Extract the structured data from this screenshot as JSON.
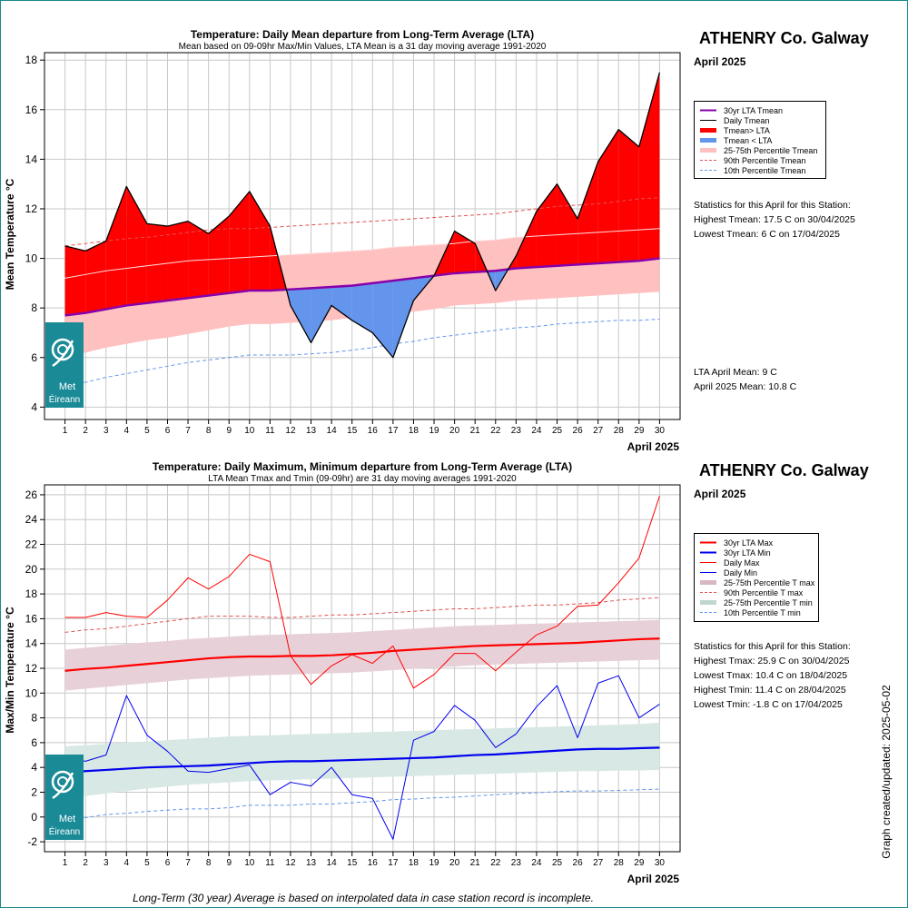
{
  "station_title": "ATHENRY Co. Galway",
  "month_label": "April 2025",
  "logo_text": [
    "Met",
    "Éireann"
  ],
  "footer_note": "Long-Term (30 year) Average is based on interpolated data in case station record is incomplete.",
  "created_label": "Graph created/updated:  2025-05-02",
  "colors": {
    "red": "#ff0000",
    "blue": "#0000ee",
    "purple": "#8800aa",
    "mean_blue": "#6495ed",
    "pink": "#ffc0c0",
    "mauve": "#e8d0d8",
    "sage": "#d8e8e4",
    "teal": "#1a8a96"
  },
  "chart_data": [
    {
      "type": "area",
      "title": "Temperature: Daily Mean departure from Long-Term Average (LTA)",
      "subtitle": "Mean based on 09-09hr Max/Min Values, LTA Mean is a 31 day moving average 1991-2020",
      "ylabel": "Mean Temperature °C",
      "xlabel": "April 2025",
      "ylim": [
        3.5,
        18.3
      ],
      "y_ticks": [
        4,
        6,
        8,
        10,
        12,
        14,
        16,
        18
      ],
      "x": [
        1,
        2,
        3,
        4,
        5,
        6,
        7,
        8,
        9,
        10,
        11,
        12,
        13,
        14,
        15,
        16,
        17,
        18,
        19,
        20,
        21,
        22,
        23,
        24,
        25,
        26,
        27,
        28,
        29,
        30
      ],
      "grid": true,
      "legend": {
        "position": "right",
        "entries": [
          "30yr LTA Tmean",
          "Daily Tmean",
          "Tmean> LTA",
          "Tmean < LTA",
          "25-75th Percentile Tmean",
          "90th Percentile Tmean",
          "10th Percentile Tmean"
        ]
      },
      "series": {
        "daily_tmean": [
          10.5,
          10.3,
          10.7,
          12.9,
          11.4,
          11.3,
          11.5,
          11.0,
          11.7,
          12.7,
          11.3,
          8.1,
          6.6,
          8.1,
          7.5,
          7.0,
          6.0,
          8.3,
          9.3,
          11.1,
          10.6,
          8.7,
          10.1,
          11.9,
          13.0,
          11.6,
          13.9,
          15.2,
          14.5,
          17.5
        ],
        "lta_tmean": [
          7.7,
          7.8,
          7.95,
          8.1,
          8.2,
          8.3,
          8.4,
          8.5,
          8.6,
          8.7,
          8.7,
          8.75,
          8.8,
          8.85,
          8.9,
          9.0,
          9.1,
          9.2,
          9.3,
          9.4,
          9.45,
          9.5,
          9.6,
          9.65,
          9.7,
          9.75,
          9.8,
          9.85,
          9.9,
          10.0
        ],
        "p25_tmean": [
          6.1,
          6.2,
          6.4,
          6.55,
          6.7,
          6.8,
          6.95,
          7.1,
          7.25,
          7.35,
          7.35,
          7.4,
          7.45,
          7.5,
          7.6,
          7.7,
          7.8,
          7.85,
          7.95,
          8.1,
          8.15,
          8.2,
          8.3,
          8.35,
          8.4,
          8.45,
          8.5,
          8.55,
          8.6,
          8.65
        ],
        "p75_tmean": [
          9.2,
          9.35,
          9.5,
          9.6,
          9.7,
          9.8,
          9.9,
          9.95,
          10.0,
          10.05,
          10.1,
          10.15,
          10.2,
          10.25,
          10.3,
          10.35,
          10.45,
          10.5,
          10.55,
          10.6,
          10.7,
          10.75,
          10.85,
          10.9,
          10.95,
          11.0,
          11.05,
          11.1,
          11.15,
          11.2
        ],
        "p90_tmean": [
          10.5,
          10.6,
          10.7,
          10.8,
          10.85,
          10.95,
          11.05,
          11.15,
          11.2,
          11.2,
          11.25,
          11.3,
          11.35,
          11.4,
          11.45,
          11.5,
          11.55,
          11.6,
          11.65,
          11.7,
          11.75,
          11.8,
          11.9,
          12.0,
          12.1,
          12.15,
          12.2,
          12.3,
          12.4,
          12.45
        ],
        "p10_tmean": [
          4.9,
          5.0,
          5.2,
          5.35,
          5.5,
          5.65,
          5.8,
          5.9,
          6.0,
          6.1,
          6.1,
          6.1,
          6.15,
          6.2,
          6.3,
          6.4,
          6.55,
          6.65,
          6.8,
          6.9,
          7.0,
          7.1,
          7.2,
          7.25,
          7.35,
          7.4,
          7.45,
          7.5,
          7.5,
          7.55
        ]
      },
      "statistics": {
        "heading": "Statistics for this April for this Station:",
        "lines": [
          "Highest Tmean: 17.5 C on 30/04/2025",
          "Lowest Tmean: 6 C on 17/04/2025"
        ],
        "means": [
          "LTA April Mean: 9 C",
          "April 2025 Mean: 10.8 C"
        ]
      }
    },
    {
      "type": "line",
      "title": "Temperature: Daily Maximum, Minimum departure from Long-Term Average (LTA)",
      "subtitle": "LTA Mean Tmax and Tmin (09-09hr) are 31 day moving averages 1991-2020",
      "ylabel": "Max/Min Temperature °C",
      "xlabel": "April 2025",
      "ylim": [
        -2.8,
        26.8
      ],
      "y_ticks": [
        -2,
        0,
        2,
        4,
        6,
        8,
        10,
        12,
        14,
        16,
        18,
        20,
        22,
        24,
        26
      ],
      "x": [
        1,
        2,
        3,
        4,
        5,
        6,
        7,
        8,
        9,
        10,
        11,
        12,
        13,
        14,
        15,
        16,
        17,
        18,
        19,
        20,
        21,
        22,
        23,
        24,
        25,
        26,
        27,
        28,
        29,
        30
      ],
      "grid": true,
      "legend": {
        "position": "right",
        "entries": [
          "30yr LTA Max",
          "30yr LTA Min",
          "Daily Max",
          "Daily Min",
          "25-75th Percentile T max",
          "90th Percentile T max",
          "25-75th Percentile T min",
          "10th Percentile T min"
        ]
      },
      "series": {
        "daily_max": [
          16.1,
          16.1,
          16.5,
          16.2,
          16.1,
          17.5,
          19.3,
          18.4,
          19.4,
          21.2,
          20.6,
          13.0,
          10.7,
          12.2,
          13.1,
          12.4,
          13.8,
          10.4,
          11.5,
          13.2,
          13.2,
          11.8,
          13.3,
          14.7,
          15.4,
          17.0,
          17.1,
          18.9,
          20.9,
          25.9
        ],
        "daily_min": [
          4.8,
          4.5,
          5.0,
          9.8,
          6.6,
          5.3,
          3.7,
          3.6,
          3.9,
          4.2,
          1.8,
          2.8,
          2.5,
          4.0,
          1.8,
          1.5,
          -1.8,
          6.2,
          6.9,
          9.0,
          7.8,
          5.6,
          6.7,
          8.9,
          10.6,
          6.4,
          10.8,
          11.4,
          8.0,
          9.1
        ],
        "lta_max": [
          11.8,
          11.95,
          12.05,
          12.2,
          12.35,
          12.5,
          12.65,
          12.8,
          12.9,
          12.95,
          12.95,
          13.0,
          13.0,
          13.05,
          13.15,
          13.25,
          13.4,
          13.5,
          13.6,
          13.7,
          13.8,
          13.85,
          13.9,
          13.95,
          14.0,
          14.05,
          14.15,
          14.25,
          14.35,
          14.4
        ],
        "p25_max": [
          10.2,
          10.35,
          10.5,
          10.65,
          10.8,
          10.95,
          11.1,
          11.2,
          11.3,
          11.4,
          11.45,
          11.5,
          11.55,
          11.6,
          11.65,
          11.75,
          11.85,
          11.95,
          12.05,
          12.15,
          12.25,
          12.3,
          12.35,
          12.4,
          12.45,
          12.5,
          12.55,
          12.6,
          12.65,
          12.7
        ],
        "p75_max": [
          13.5,
          13.65,
          13.8,
          13.95,
          14.1,
          14.2,
          14.35,
          14.45,
          14.55,
          14.65,
          14.7,
          14.75,
          14.8,
          14.85,
          14.9,
          15.0,
          15.1,
          15.2,
          15.3,
          15.4,
          15.45,
          15.5,
          15.55,
          15.6,
          15.65,
          15.7,
          15.75,
          15.8,
          15.85,
          15.9
        ],
        "p90_max": [
          14.9,
          15.1,
          15.2,
          15.4,
          15.6,
          15.8,
          16.0,
          16.2,
          16.2,
          16.2,
          16.1,
          16.1,
          16.2,
          16.3,
          16.3,
          16.4,
          16.5,
          16.6,
          16.7,
          16.8,
          16.8,
          16.9,
          17.0,
          17.1,
          17.1,
          17.2,
          17.3,
          17.5,
          17.6,
          17.7
        ],
        "lta_min": [
          3.6,
          3.7,
          3.8,
          3.9,
          4.0,
          4.05,
          4.1,
          4.15,
          4.25,
          4.35,
          4.45,
          4.5,
          4.5,
          4.55,
          4.6,
          4.65,
          4.7,
          4.75,
          4.8,
          4.9,
          5.0,
          5.05,
          5.15,
          5.25,
          5.35,
          5.45,
          5.5,
          5.5,
          5.55,
          5.6
        ],
        "p25_min": [
          1.5,
          1.7,
          1.9,
          2.1,
          2.3,
          2.45,
          2.6,
          2.7,
          2.8,
          2.9,
          2.95,
          3.0,
          3.05,
          3.1,
          3.15,
          3.2,
          3.25,
          3.3,
          3.35,
          3.4,
          3.45,
          3.5,
          3.55,
          3.6,
          3.65,
          3.7,
          3.7,
          3.75,
          3.75,
          3.8
        ],
        "p75_min": [
          5.7,
          5.8,
          5.9,
          6.0,
          6.1,
          6.2,
          6.3,
          6.4,
          6.5,
          6.55,
          6.6,
          6.65,
          6.7,
          6.75,
          6.8,
          6.85,
          6.9,
          6.95,
          7.0,
          7.05,
          7.1,
          7.15,
          7.2,
          7.25,
          7.3,
          7.35,
          7.4,
          7.45,
          7.5,
          7.6
        ],
        "p10_min": [
          -0.1,
          -0.05,
          0.2,
          0.3,
          0.45,
          0.55,
          0.65,
          0.65,
          0.75,
          0.95,
          0.95,
          0.95,
          1.05,
          1.05,
          1.15,
          1.25,
          1.4,
          1.45,
          1.55,
          1.6,
          1.7,
          1.8,
          1.9,
          1.95,
          2.05,
          2.1,
          2.1,
          2.15,
          2.2,
          2.25
        ]
      },
      "statistics": {
        "heading": "Statistics for this April for this Station:",
        "lines": [
          "Highest Tmax: 25.9 C on 30/04/2025",
          "Lowest Tmax: 10.4 C on 18/04/2025",
          "Highest Tmin: 11.4 C on 28/04/2025",
          "Lowest Tmin: -1.8 C on 17/04/2025"
        ]
      }
    }
  ]
}
